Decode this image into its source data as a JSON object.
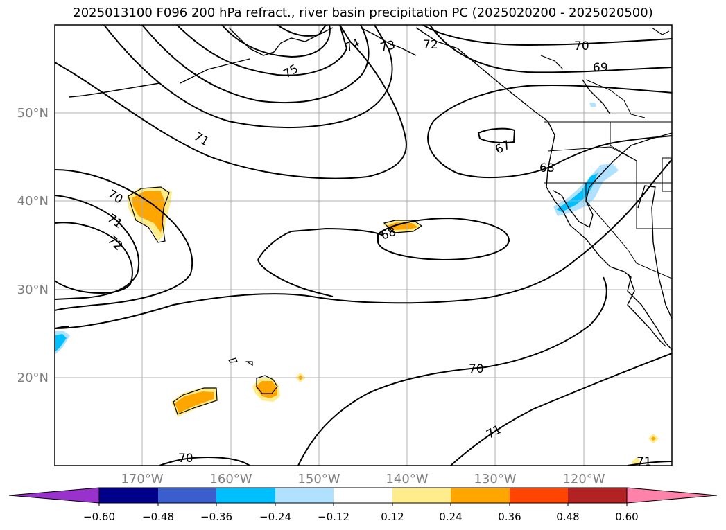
{
  "title": "2025013100 F096 200 hPa refract., river basin precipitation PC (2025020200 - 2025020500)",
  "lat_labels": [
    "50°N",
    "40°N",
    "30°N",
    "20°N"
  ],
  "lon_labels": [
    "170°W",
    "160°W",
    "150°W",
    "140°W",
    "130°W",
    "120°W"
  ],
  "contour_labels": [
    "75",
    "74",
    "73",
    "72",
    "70",
    "69",
    "71",
    "67",
    "68",
    "70",
    "71",
    "72",
    "68",
    "70",
    "71",
    "70",
    "71"
  ],
  "colorbar": {
    "ticks": [
      "−0.60",
      "−0.48",
      "−0.36",
      "−0.24",
      "−0.12",
      "0.12",
      "0.24",
      "0.36",
      "0.48",
      "0.60"
    ],
    "colors": [
      "#9932cc",
      "#00008b",
      "#3a5fcd",
      "#00bfff",
      "#b0e2ff",
      "#ffffff",
      "#ffec8b",
      "#ffa500",
      "#ff4500",
      "#b22222",
      "#ff82ab"
    ]
  }
}
